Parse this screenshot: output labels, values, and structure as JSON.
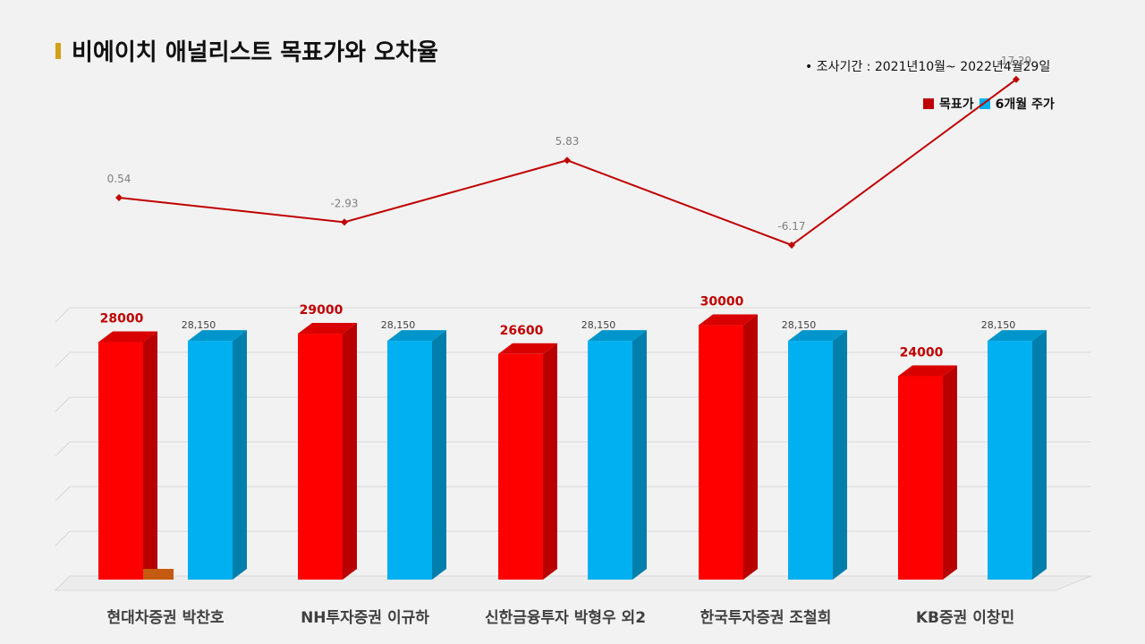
{
  "title": "비에이치 애널리스트 목표가와 오차율",
  "period": "•  조사기간 : 2021년10월~ 2022년4월29일",
  "legend": {
    "target": "목표가",
    "price": "6개월 주가"
  },
  "colors": {
    "target": "#ff0000",
    "price": "#00b0f0",
    "line": "#c00000"
  },
  "chart_data": {
    "type": "bar",
    "categories": [
      "현대차증권 박찬호",
      "NH투자증권 이규하",
      "신한금융투자 박형우 외2",
      "한국투자증권 조철희",
      "KB증권 이창민"
    ],
    "series": [
      {
        "name": "목표가",
        "values": [
          28000,
          29000,
          26600,
          30000,
          24000
        ],
        "labels": [
          "28000",
          "29000",
          "26600",
          "30000",
          "24000"
        ]
      },
      {
        "name": "6개월 주가",
        "values": [
          28150,
          28150,
          28150,
          28150,
          28150
        ],
        "labels": [
          "28,150",
          "28,150",
          "28,150",
          "28,150",
          "28,150"
        ]
      }
    ],
    "line_series": {
      "values": [
        0.54,
        -2.93,
        5.83,
        -6.17,
        17.29
      ],
      "labels": [
        "0.54",
        "-2.93",
        "5.83",
        "-6.17",
        "17.29"
      ]
    },
    "ylim": [
      0,
      33750
    ],
    "line_ylim": [
      -12,
      26
    ],
    "grid": true,
    "legend_position": "top-right"
  }
}
